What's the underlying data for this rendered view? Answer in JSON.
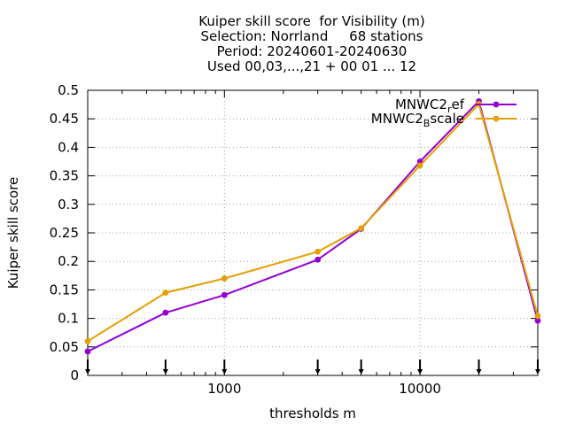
{
  "chart_data": {
    "type": "line",
    "title_lines": [
      "Kuiper skill score  for Visibility (m)",
      "Selection: Norrland     68 stations",
      "Period: 20240601-20240630",
      "Used 00,03,...,21 + 00 01 ... 12"
    ],
    "xlabel": "thresholds m",
    "ylabel": "Kuiper skill score",
    "x_scale": "log",
    "xlim": [
      200,
      40000
    ],
    "ylim": [
      0,
      0.5
    ],
    "x_ticks": [
      {
        "value": 1000,
        "label": "1000"
      },
      {
        "value": 10000,
        "label": "10000"
      }
    ],
    "y_ticks": [
      {
        "value": 0,
        "label": "0"
      },
      {
        "value": 0.05,
        "label": "0.05"
      },
      {
        "value": 0.1,
        "label": "0.1"
      },
      {
        "value": 0.15,
        "label": "0.15"
      },
      {
        "value": 0.2,
        "label": "0.2"
      },
      {
        "value": 0.25,
        "label": "0.25"
      },
      {
        "value": 0.3,
        "label": "0.3"
      },
      {
        "value": 0.35,
        "label": "0.35"
      },
      {
        "value": 0.4,
        "label": "0.4"
      },
      {
        "value": 0.45,
        "label": "0.45"
      },
      {
        "value": 0.5,
        "label": "0.5"
      }
    ],
    "threshold_markers": [
      200,
      500,
      1000,
      3000,
      5000,
      10000,
      20000,
      40000
    ],
    "grid": true,
    "legend_position": "top-right",
    "x": [
      200,
      500,
      1000,
      3000,
      5000,
      10000,
      20000,
      40000
    ],
    "series": [
      {
        "name_main": "MNWC2",
        "name_sub": "r",
        "name_tail": "ef",
        "color": "#9400d3",
        "values": [
          0.042,
          0.11,
          0.141,
          0.203,
          0.257,
          0.375,
          0.481,
          0.096
        ]
      },
      {
        "name_main": "MNWC2",
        "name_sub": "B",
        "name_tail": "scale",
        "color": "#e69f00",
        "values": [
          0.06,
          0.145,
          0.17,
          0.217,
          0.258,
          0.368,
          0.476,
          0.104
        ]
      }
    ]
  }
}
